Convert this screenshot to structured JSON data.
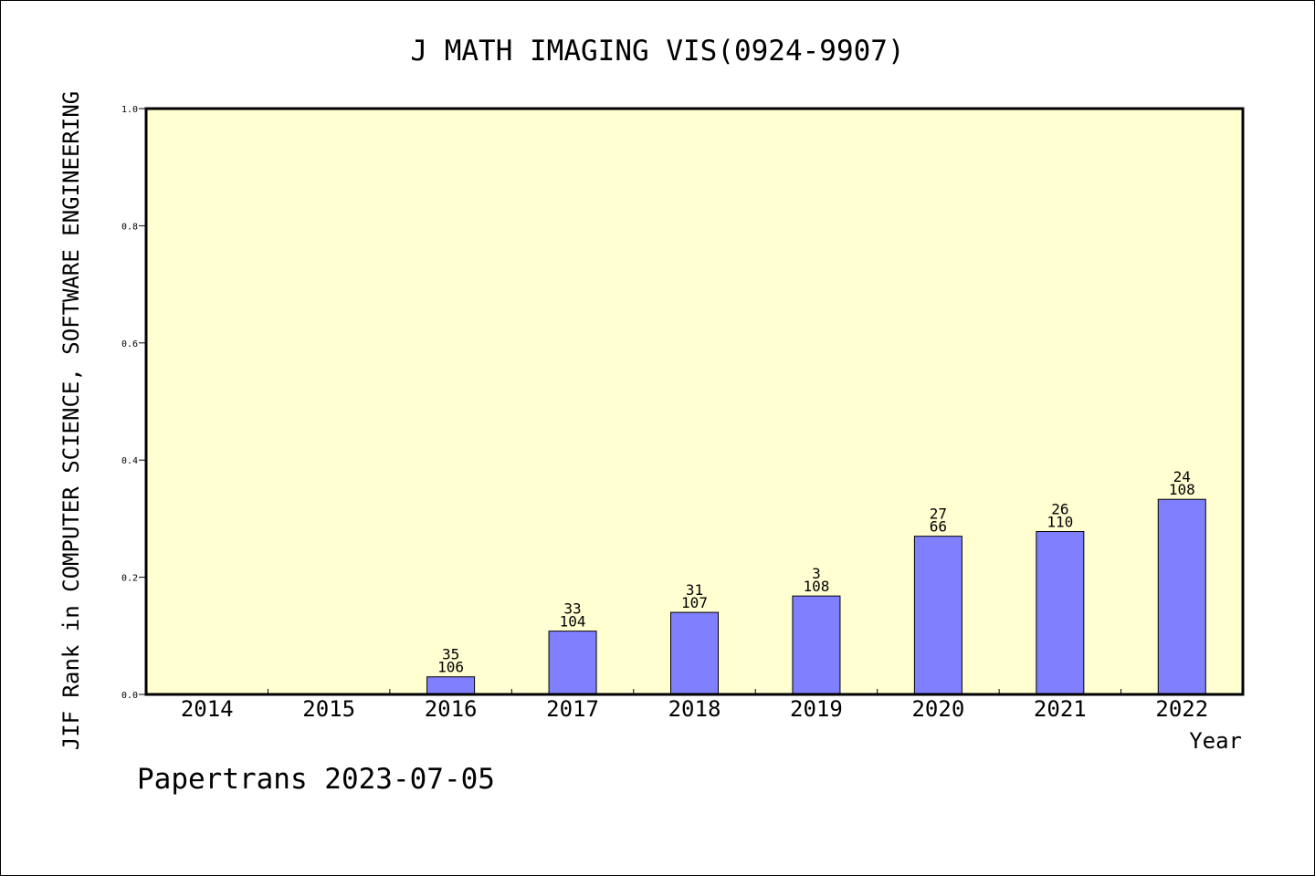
{
  "chart_data": {
    "type": "bar",
    "title": "J MATH IMAGING VIS(0924-9907)",
    "xlabel": "Year",
    "ylabel": "JIF Rank in COMPUTER SCIENCE, SOFTWARE ENGINEERING",
    "categories": [
      "2014",
      "2015",
      "2016",
      "2017",
      "2018",
      "2019",
      "2020",
      "2021",
      "2022"
    ],
    "values": [
      0,
      0,
      0.03,
      0.108,
      0.14,
      0.168,
      0.27,
      0.278,
      0.333
    ],
    "bar_labels_top": [
      "",
      "",
      "35",
      "33",
      "31",
      "3",
      "27",
      "26",
      "24"
    ],
    "bar_labels_bottom": [
      "",
      "",
      "106",
      "104",
      "107",
      "108",
      "66",
      "110",
      "108"
    ],
    "ylim": [
      0,
      1.0
    ],
    "yticks": [
      "0.0",
      "0.2",
      "0.4",
      "0.6",
      "0.8",
      "1.0"
    ],
    "grid": false,
    "colors": {
      "plot_background": "#ffffd2",
      "bar_fill": "#8080ff",
      "bar_stroke": "#000000"
    }
  },
  "footer": {
    "text": "Papertrans 2023-07-05"
  }
}
